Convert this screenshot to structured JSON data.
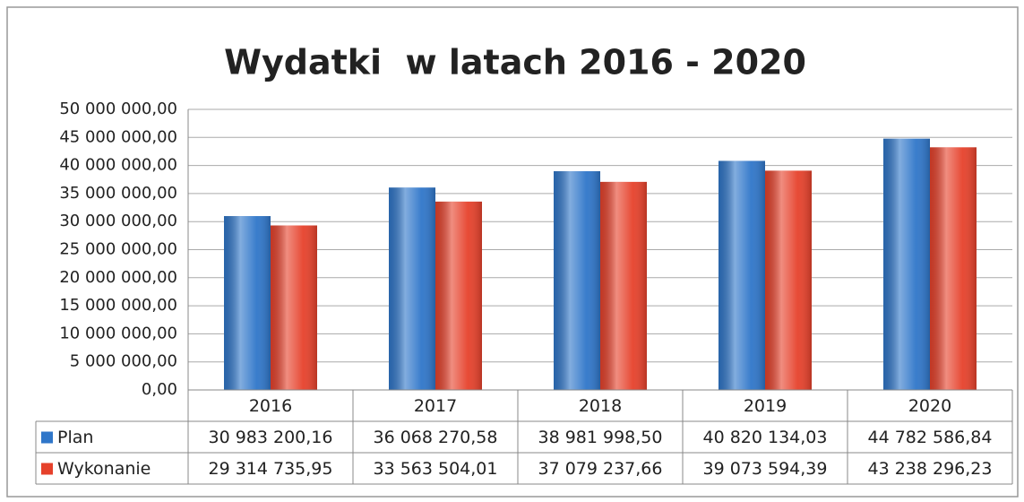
{
  "chart_data": {
    "type": "bar",
    "title": "Wydatki  w latach 2016 - 2020",
    "categories": [
      "2016",
      "2017",
      "2018",
      "2019",
      "2020"
    ],
    "series": [
      {
        "name": "Plan",
        "color": "#2f76c9",
        "values": [
          30983200.16,
          36068270.58,
          38981998.5,
          40820134.03,
          44782586.84
        ],
        "value_labels": [
          "30 983 200,16",
          "36 068 270,58",
          "38 981 998,50",
          "40 820 134,03",
          "44 782 586,84"
        ]
      },
      {
        "name": "Wykonanie",
        "color": "#e6412b",
        "values": [
          29314735.95,
          33563504.01,
          37079237.66,
          39073594.39,
          43238296.23
        ],
        "value_labels": [
          "29 314 735,95",
          "33 563 504,01",
          "37 079 237,66",
          "39 073 594,39",
          "43 238 296,23"
        ]
      }
    ],
    "ylim": [
      0,
      50000000
    ],
    "yticks": [
      {
        "value": 0,
        "label": "0,00"
      },
      {
        "value": 5000000,
        "label": "5 000 000,00"
      },
      {
        "value": 10000000,
        "label": "10 000 000,00"
      },
      {
        "value": 15000000,
        "label": "15 000 000,00"
      },
      {
        "value": 20000000,
        "label": "20 000 000,00"
      },
      {
        "value": 25000000,
        "label": "25 000 000,00"
      },
      {
        "value": 30000000,
        "label": "30 000 000,00"
      },
      {
        "value": 35000000,
        "label": "35 000 000,00"
      },
      {
        "value": 40000000,
        "label": "40 000 000,00"
      },
      {
        "value": 45000000,
        "label": "45 000 000,00"
      },
      {
        "value": 50000000,
        "label": "50 000 000,00"
      }
    ],
    "grid": true
  }
}
